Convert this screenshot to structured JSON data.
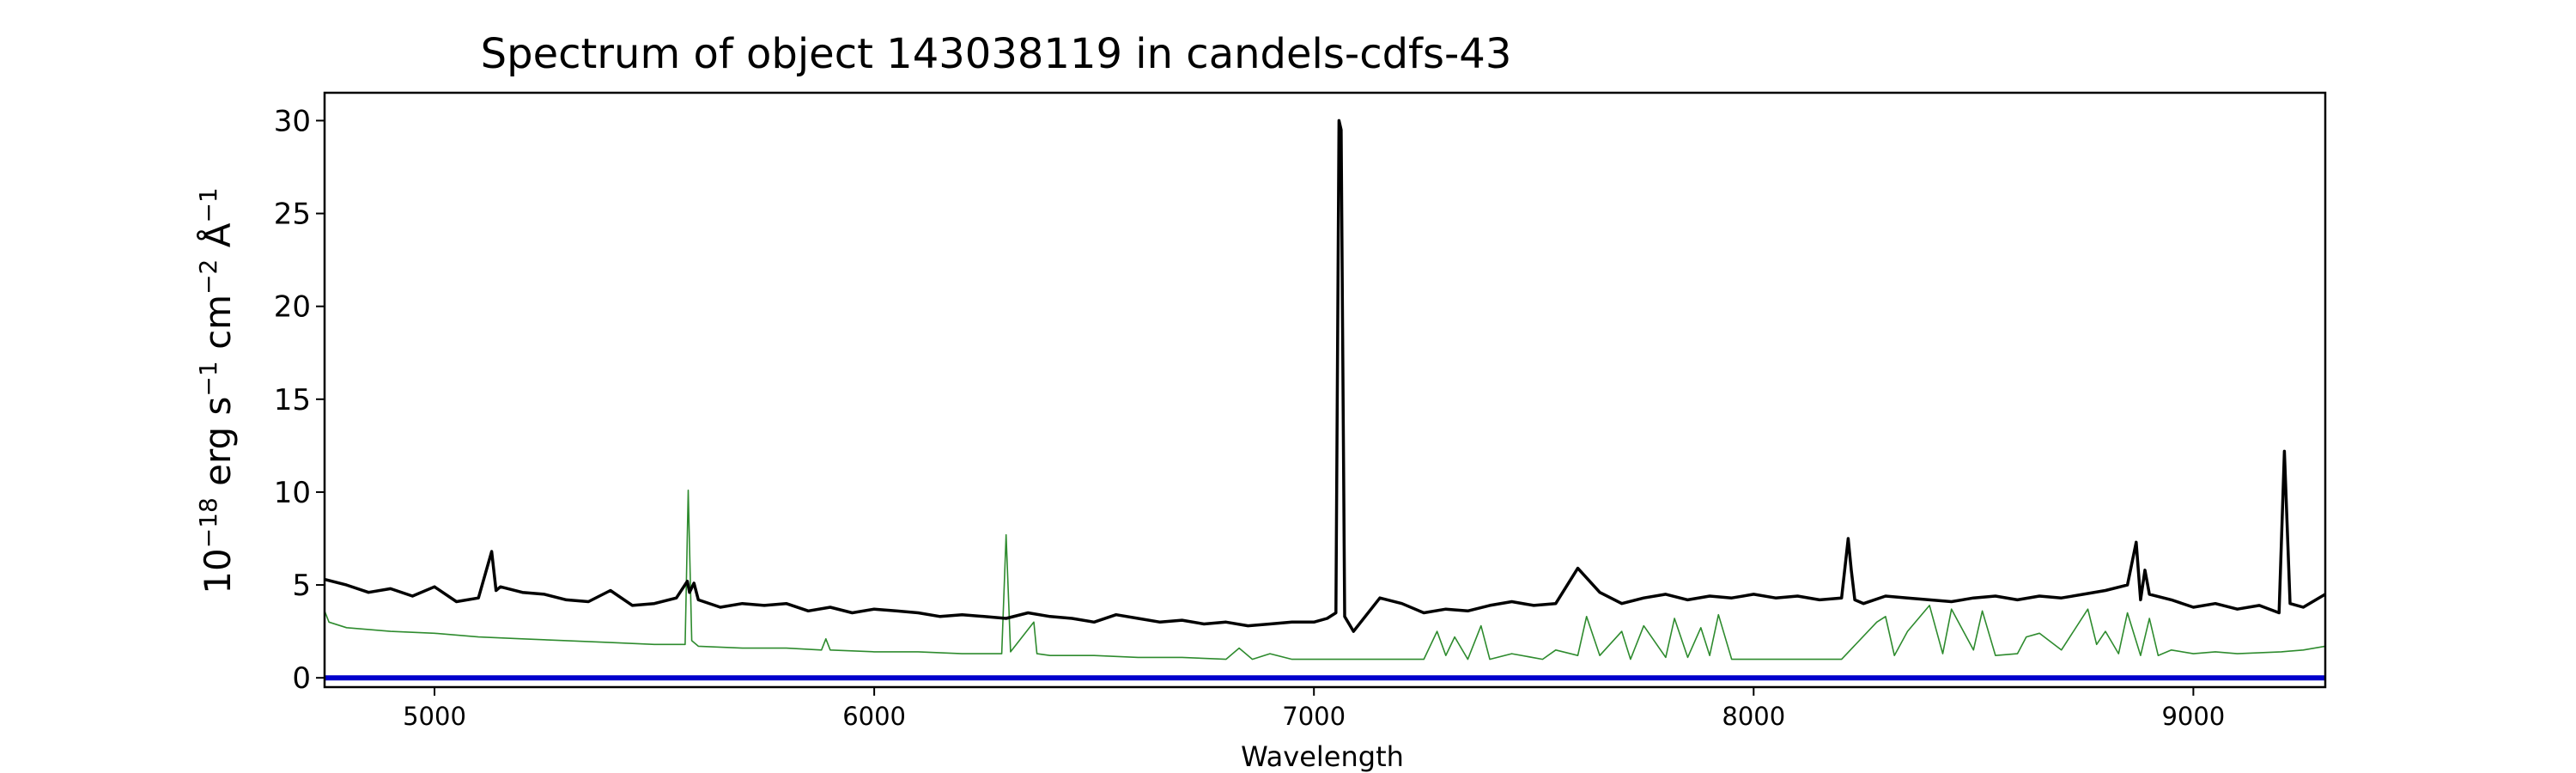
{
  "chart_data": {
    "type": "line",
    "title": "Spectrum of object 143038119 in candels-cdfs-43",
    "xlabel": "Wavelength",
    "ylabel": {
      "base": "10",
      "exp1": "−18",
      "text1": " erg s",
      "exp2": "−1",
      "text2": " cm",
      "exp3": "−2",
      "text3": " Å",
      "exp4": "−1"
    },
    "xlim": [
      4750,
      9300
    ],
    "ylim": [
      -0.5,
      31.5
    ],
    "xticks": [
      5000,
      6000,
      7000,
      8000,
      9000
    ],
    "yticks": [
      0,
      5,
      10,
      15,
      20,
      25,
      30
    ],
    "grid": false,
    "legend": "none",
    "series": [
      {
        "role": "flux",
        "color": "#000000",
        "x": [
          4750,
          4800,
          4850,
          4900,
          4950,
          5000,
          5050,
          5100,
          5130,
          5140,
          5150,
          5200,
          5250,
          5300,
          5350,
          5400,
          5450,
          5500,
          5550,
          5575,
          5580,
          5590,
          5600,
          5650,
          5700,
          5750,
          5800,
          5850,
          5900,
          5950,
          6000,
          6050,
          6100,
          6150,
          6200,
          6250,
          6300,
          6350,
          6400,
          6450,
          6500,
          6550,
          6600,
          6650,
          6700,
          6750,
          6800,
          6850,
          6900,
          6950,
          7000,
          7030,
          7050,
          7057,
          7062,
          7070,
          7090,
          7150,
          7200,
          7250,
          7300,
          7350,
          7400,
          7450,
          7500,
          7550,
          7600,
          7650,
          7700,
          7750,
          7800,
          7850,
          7900,
          7950,
          8000,
          8050,
          8100,
          8150,
          8200,
          8215,
          8222,
          8230,
          8250,
          8300,
          8350,
          8400,
          8450,
          8500,
          8550,
          8600,
          8650,
          8700,
          8750,
          8800,
          8850,
          8870,
          8880,
          8890,
          8900,
          8950,
          9000,
          9050,
          9100,
          9150,
          9195,
          9207,
          9220,
          9250,
          9300
        ],
        "y": [
          5.3,
          5.0,
          4.6,
          4.8,
          4.4,
          4.9,
          4.1,
          4.3,
          6.8,
          4.7,
          4.9,
          4.6,
          4.5,
          4.2,
          4.1,
          4.7,
          3.9,
          4.0,
          4.3,
          5.2,
          4.6,
          5.1,
          4.2,
          3.8,
          4.0,
          3.9,
          4.0,
          3.6,
          3.8,
          3.5,
          3.7,
          3.6,
          3.5,
          3.3,
          3.4,
          3.3,
          3.2,
          3.5,
          3.3,
          3.2,
          3.0,
          3.4,
          3.2,
          3.0,
          3.1,
          2.9,
          3.0,
          2.8,
          2.9,
          3.0,
          3.0,
          3.2,
          3.5,
          30.0,
          29.5,
          3.3,
          2.5,
          4.3,
          4.0,
          3.5,
          3.7,
          3.6,
          3.9,
          4.1,
          3.9,
          4.0,
          5.9,
          4.6,
          4.0,
          4.3,
          4.5,
          4.2,
          4.4,
          4.3,
          4.5,
          4.3,
          4.4,
          4.2,
          4.3,
          7.5,
          5.8,
          4.2,
          4.0,
          4.4,
          4.3,
          4.2,
          4.1,
          4.3,
          4.4,
          4.2,
          4.4,
          4.3,
          4.5,
          4.7,
          5.0,
          7.3,
          4.2,
          5.8,
          4.5,
          4.2,
          3.8,
          4.0,
          3.7,
          3.9,
          3.5,
          12.2,
          4.0,
          3.8,
          4.5
        ]
      },
      {
        "role": "model",
        "color": "#2e8b2e",
        "x": [
          4750,
          4760,
          4800,
          4900,
          5000,
          5100,
          5200,
          5300,
          5400,
          5500,
          5570,
          5577,
          5585,
          5600,
          5700,
          5800,
          5880,
          5890,
          5900,
          6000,
          6100,
          6200,
          6290,
          6300,
          6310,
          6363,
          6370,
          6400,
          6500,
          6600,
          6700,
          6800,
          6830,
          6860,
          6900,
          6950,
          7000,
          7100,
          7200,
          7250,
          7280,
          7300,
          7320,
          7350,
          7380,
          7400,
          7450,
          7520,
          7550,
          7600,
          7620,
          7650,
          7700,
          7720,
          7750,
          7800,
          7820,
          7850,
          7880,
          7900,
          7920,
          7950,
          8000,
          8100,
          8200,
          8280,
          8300,
          8320,
          8350,
          8400,
          8430,
          8450,
          8500,
          8520,
          8550,
          8600,
          8620,
          8650,
          8700,
          8760,
          8780,
          8800,
          8830,
          8850,
          8880,
          8900,
          8920,
          8950,
          9000,
          9050,
          9100,
          9200,
          9250,
          9300
        ],
        "y": [
          3.6,
          3.0,
          2.7,
          2.5,
          2.4,
          2.2,
          2.1,
          2.0,
          1.9,
          1.8,
          1.8,
          10.1,
          2.0,
          1.7,
          1.6,
          1.6,
          1.5,
          2.1,
          1.5,
          1.4,
          1.4,
          1.3,
          1.3,
          7.7,
          1.4,
          3.0,
          1.3,
          1.2,
          1.2,
          1.1,
          1.1,
          1.0,
          1.6,
          1.0,
          1.3,
          1.0,
          1.0,
          1.0,
          1.0,
          1.0,
          2.5,
          1.2,
          2.2,
          1.0,
          2.8,
          1.0,
          1.3,
          1.0,
          1.5,
          1.2,
          3.3,
          1.2,
          2.5,
          1.0,
          2.8,
          1.1,
          3.2,
          1.1,
          2.7,
          1.2,
          3.4,
          1.0,
          1.0,
          1.0,
          1.0,
          3.0,
          3.3,
          1.2,
          2.5,
          3.9,
          1.3,
          3.7,
          1.5,
          3.6,
          1.2,
          1.3,
          2.2,
          2.4,
          1.5,
          3.7,
          1.8,
          2.5,
          1.3,
          3.5,
          1.2,
          3.2,
          1.2,
          1.5,
          1.3,
          1.4,
          1.3,
          1.4,
          1.5,
          1.7
        ]
      },
      {
        "role": "baseline",
        "color": "#0000cc",
        "x": [
          4750,
          9300
        ],
        "y": [
          0,
          0
        ]
      }
    ]
  }
}
